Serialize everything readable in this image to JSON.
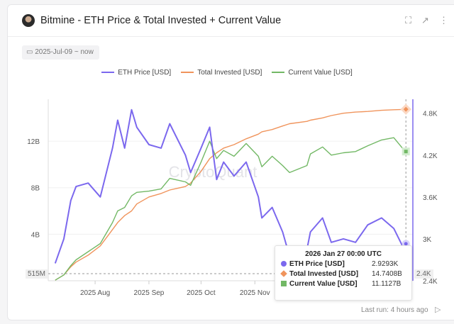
{
  "header": {
    "title": "Bitmine - ETH Price & Total Invested + Current Value",
    "icons": [
      "fullscreen-icon",
      "external-link-icon",
      "more-vert-icon"
    ]
  },
  "date_range": "2025-Jul-09 ~ now",
  "footer": {
    "last_run": "Last run: 4 hours ago"
  },
  "watermark": "CryptoQuant",
  "colors": {
    "eth": "#7b68ee",
    "invested": "#f0945c",
    "current": "#72b865"
  },
  "tooltip": {
    "title": "2026 Jan 27 00:00 UTC",
    "rows": [
      {
        "label": "ETH Price [USD]",
        "value": "2.9293K"
      },
      {
        "label": "Total Invested [USD]",
        "value": "14.7408B"
      },
      {
        "label": "Current Value [USD]",
        "value": "11.1127B"
      }
    ]
  },
  "crosshair": {
    "left_label": "515M",
    "right_label": "2.4K",
    "x_label": "00"
  },
  "chart_data": {
    "type": "line",
    "title": "Bitmine - ETH Price & Total Invested + Current Value",
    "legend": [
      "ETH Price [USD]",
      "Total Invested [USD]",
      "Current Value [USD]"
    ],
    "legend_position": "top-center",
    "x_ticks": [
      "2025 Aug",
      "2025 Sep",
      "2025 Oct",
      "2025 Nov"
    ],
    "x_tick_dates": [
      "2025-08-01",
      "2025-09-01",
      "2025-10-01",
      "2025-11-01"
    ],
    "x_range": [
      "2025-07-05",
      "2026-01-31"
    ],
    "y_left": {
      "ticks": [
        "4B",
        "8B",
        "12B"
      ],
      "tick_values": [
        4,
        8,
        12
      ],
      "range": [
        0,
        15.6
      ],
      "unit": "B USD"
    },
    "y_right": {
      "ticks": [
        "2.4K",
        "3K",
        "3.6K",
        "4.2K",
        "4.8K"
      ],
      "tick_values": [
        2.4,
        3.0,
        3.6,
        4.2,
        4.8
      ],
      "range": [
        2.4,
        5.0
      ],
      "unit": "K USD"
    },
    "dates": [
      "2025-07-09",
      "2025-07-14",
      "2025-07-18",
      "2025-07-21",
      "2025-07-28",
      "2025-08-04",
      "2025-08-11",
      "2025-08-14",
      "2025-08-18",
      "2025-08-22",
      "2025-08-25",
      "2025-09-01",
      "2025-09-08",
      "2025-09-13",
      "2025-09-22",
      "2025-09-25",
      "2025-10-01",
      "2025-10-06",
      "2025-10-10",
      "2025-10-14",
      "2025-10-20",
      "2025-10-27",
      "2025-11-03",
      "2025-11-05",
      "2025-11-11",
      "2025-11-17",
      "2025-11-21",
      "2025-12-01",
      "2025-12-03",
      "2025-12-10",
      "2025-12-15",
      "2025-12-22",
      "2025-12-29",
      "2026-01-05",
      "2026-01-13",
      "2026-01-20",
      "2026-01-25",
      "2026-01-27"
    ],
    "series": [
      {
        "name": "ETH Price [USD]",
        "axis": "right",
        "values": [
          2.65,
          3.0,
          3.55,
          3.75,
          3.8,
          3.6,
          4.3,
          4.7,
          4.3,
          4.85,
          4.6,
          4.35,
          4.3,
          4.65,
          4.2,
          3.95,
          4.3,
          4.6,
          3.85,
          4.1,
          3.9,
          4.1,
          3.6,
          3.3,
          3.45,
          3.1,
          2.75,
          2.85,
          3.1,
          3.3,
          2.95,
          3.0,
          2.95,
          3.2,
          3.3,
          3.15,
          2.9,
          2.93
        ]
      },
      {
        "name": "Total Invested [USD]",
        "axis": "left",
        "values": [
          0.05,
          0.5,
          1.2,
          1.6,
          2.2,
          3.0,
          4.4,
          5.0,
          5.6,
          6.0,
          6.6,
          7.2,
          7.5,
          7.8,
          8.1,
          8.4,
          9.4,
          10.5,
          11.0,
          11.4,
          11.7,
          12.2,
          12.6,
          12.8,
          13.0,
          13.3,
          13.5,
          13.7,
          13.8,
          14.0,
          14.2,
          14.4,
          14.5,
          14.55,
          14.65,
          14.7,
          14.72,
          14.74
        ]
      },
      {
        "name": "Current Value [USD]",
        "axis": "left",
        "values": [
          0.05,
          0.5,
          1.3,
          1.8,
          2.5,
          3.2,
          5.0,
          6.0,
          6.3,
          7.3,
          7.6,
          7.7,
          7.9,
          8.8,
          8.5,
          8.2,
          10.2,
          12.0,
          10.5,
          11.2,
          10.7,
          11.8,
          10.7,
          9.8,
          10.7,
          9.9,
          9.3,
          9.9,
          10.9,
          11.5,
          10.8,
          11.0,
          11.1,
          11.6,
          12.1,
          12.3,
          11.4,
          11.11
        ]
      }
    ]
  }
}
